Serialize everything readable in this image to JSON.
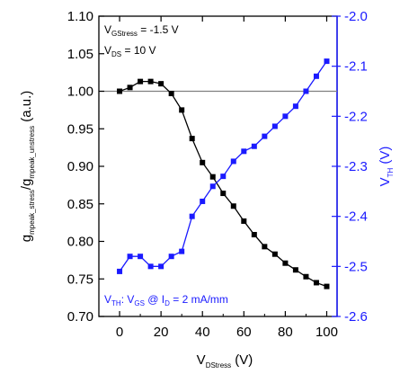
{
  "chart_data": {
    "type": "scatter",
    "xlabel_main": "V",
    "xlabel_sub": "DStress",
    "xlabel_unit": " (V)",
    "ylabel_left": {
      "g1": "g",
      "s1": "mpeak_stress",
      "mid": "/g",
      "s2": "mpeak_unstress",
      "unit": " (a.u.)"
    },
    "ylabel_right": {
      "main": "V",
      "sub": "TH",
      "unit": " (V)"
    },
    "xlim": [
      -10,
      105
    ],
    "ylim_left": [
      0.7,
      1.1
    ],
    "ylim_right": [
      -2.6,
      -2.0
    ],
    "x_ticks": [
      "0",
      "20",
      "40",
      "60",
      "80",
      "100"
    ],
    "y_ticks_left": [
      "0.70",
      "0.75",
      "0.80",
      "0.85",
      "0.90",
      "0.95",
      "1.00",
      "1.05",
      "1.10"
    ],
    "y_ticks_right": [
      "-2.6",
      "-2.5",
      "-2.4",
      "-2.3",
      "-2.2",
      "-2.1",
      "-2.0"
    ],
    "reference_line_y": 1.0,
    "colors": {
      "left_series": "#000000",
      "right_series": "#1a1aff",
      "reference": "#7f7f7f"
    },
    "annotations": {
      "top_line1": {
        "a": "V",
        "b": "GStress",
        "c": " = -1.5 V"
      },
      "top_line2": {
        "a": "V",
        "b": "DS",
        "c": " = 10 V"
      },
      "bottom": {
        "a": "V",
        "b": "TH",
        "c": ": V",
        "d": "GS",
        "e": " @ I",
        "f": "D",
        "g": " = 2 mA/mm"
      }
    },
    "series": [
      {
        "axis": "left",
        "marker": "square",
        "x": [
          0,
          5,
          10,
          15,
          20,
          25,
          30,
          35,
          40,
          45,
          50,
          55,
          60,
          65,
          70,
          75,
          80,
          85,
          90,
          95,
          100
        ],
        "values": [
          1.0,
          1.005,
          1.013,
          1.013,
          1.01,
          0.997,
          0.975,
          0.937,
          0.905,
          0.886,
          0.864,
          0.847,
          0.827,
          0.809,
          0.793,
          0.783,
          0.771,
          0.762,
          0.753,
          0.745,
          0.74
        ]
      },
      {
        "axis": "right",
        "marker": "square",
        "x": [
          0,
          5,
          10,
          15,
          20,
          25,
          30,
          35,
          40,
          45,
          50,
          55,
          60,
          65,
          70,
          75,
          80,
          85,
          90,
          95,
          100
        ],
        "values": [
          -2.51,
          -2.48,
          -2.48,
          -2.5,
          -2.5,
          -2.48,
          -2.47,
          -2.4,
          -2.37,
          -2.34,
          -2.32,
          -2.29,
          -2.27,
          -2.26,
          -2.24,
          -2.22,
          -2.2,
          -2.18,
          -2.15,
          -2.12,
          -2.09
        ]
      }
    ]
  }
}
